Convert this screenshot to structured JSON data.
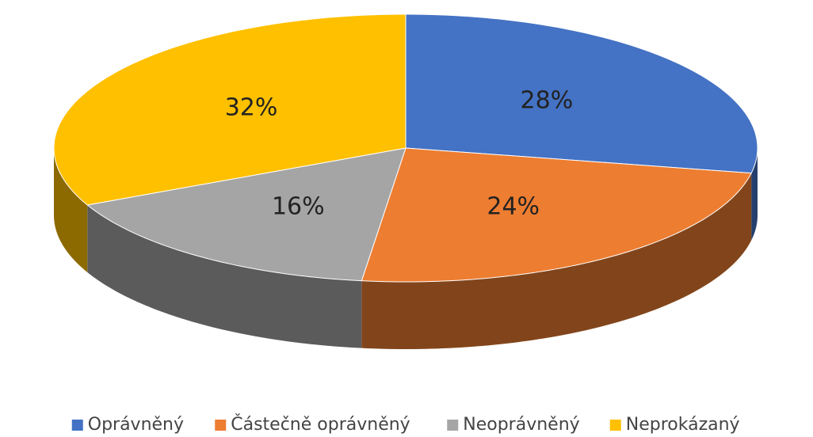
{
  "chart_data": {
    "type": "pie3d",
    "categories": [
      "Oprávněný",
      "Částečně oprávněný",
      "Neoprávněný",
      "Neprokázaný"
    ],
    "values": [
      28,
      24,
      16,
      32
    ],
    "value_labels": [
      "28%",
      "24%",
      "16%",
      "32%"
    ],
    "colors": [
      "#4472c4",
      "#ed7d31",
      "#a5a5a5",
      "#ffc000"
    ],
    "legend": "bottom"
  }
}
